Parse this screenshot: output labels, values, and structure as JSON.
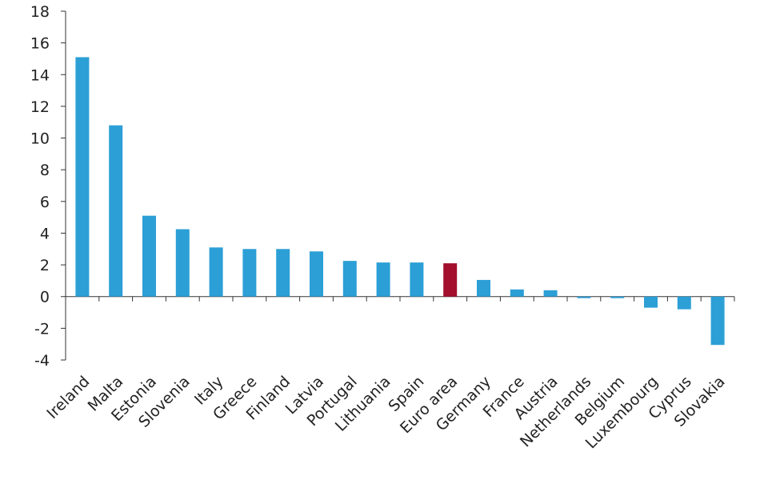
{
  "chart_data": {
    "type": "bar",
    "title": "",
    "xlabel": "",
    "ylabel": "",
    "ylim": [
      -4,
      18
    ],
    "yticks": [
      18,
      16,
      14,
      12,
      10,
      8,
      6,
      4,
      2,
      0,
      -2,
      -4
    ],
    "ytick_labels": [
      "18",
      "16",
      "14",
      "12",
      "10",
      "8",
      "6",
      "4",
      "2",
      "0",
      "-2",
      "-4"
    ],
    "grid": false,
    "categories": [
      "Ireland",
      "Malta",
      "Estonia",
      "Slovenia",
      "Italy",
      "Greece",
      "Finland",
      "Latvia",
      "Portugal",
      "Lithuania",
      "Spain",
      "Euro area",
      "Germany",
      "France",
      "Austria",
      "Netherlands",
      "Belgium",
      "Luxembourg",
      "Cyprus",
      "Slovakia"
    ],
    "values": [
      15.1,
      10.8,
      5.1,
      4.25,
      3.1,
      3.0,
      3.0,
      2.85,
      2.25,
      2.15,
      2.15,
      2.1,
      1.05,
      0.45,
      0.4,
      -0.1,
      -0.1,
      -0.7,
      -0.8,
      -3.05
    ],
    "colors": {
      "default": "#2c9fd6",
      "highlight": "#a30f2d"
    },
    "highlight_category": "Euro area"
  }
}
